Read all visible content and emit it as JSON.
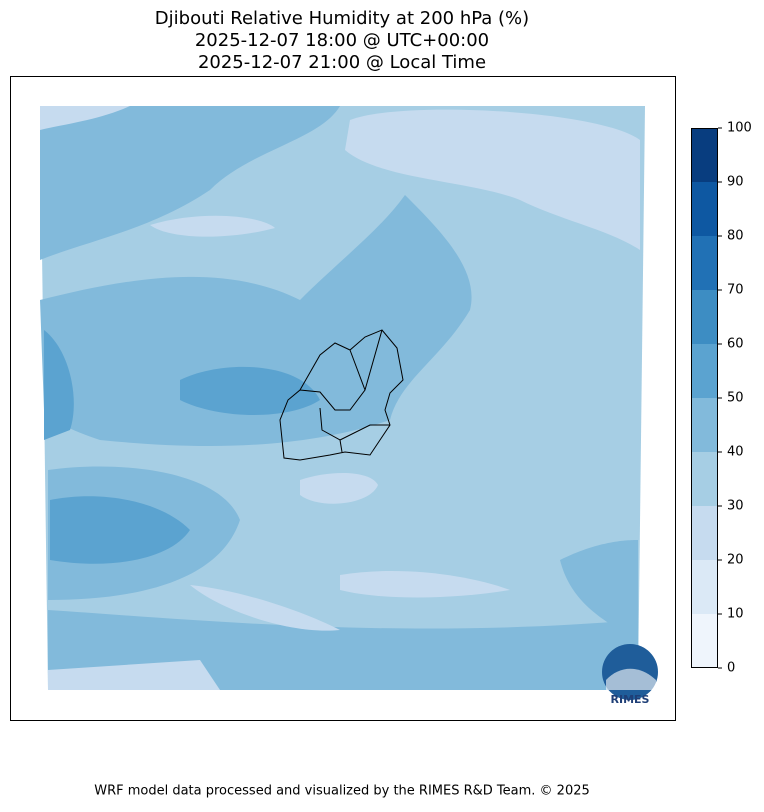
{
  "title": [
    "Djibouti Relative Humidity at 200 hPa (%)",
    "2025-12-07 18:00 @ UTC+00:00",
    "2025-12-07 21:00 @ Local Time"
  ],
  "colorbar": {
    "ticks": [
      0,
      10,
      20,
      30,
      40,
      50,
      60,
      70,
      80,
      90,
      100
    ],
    "colors": [
      "#eff5fc",
      "#dbe9f6",
      "#c6dbef",
      "#a6cee4",
      "#82badb",
      "#5ba3d0",
      "#3d8dc3",
      "#2171b5",
      "#0e58a2",
      "#083d7f"
    ]
  },
  "logo_text": "RIMES",
  "footer": "WRF model data processed and visualized by the RIMES R&D Team. © 2025"
}
